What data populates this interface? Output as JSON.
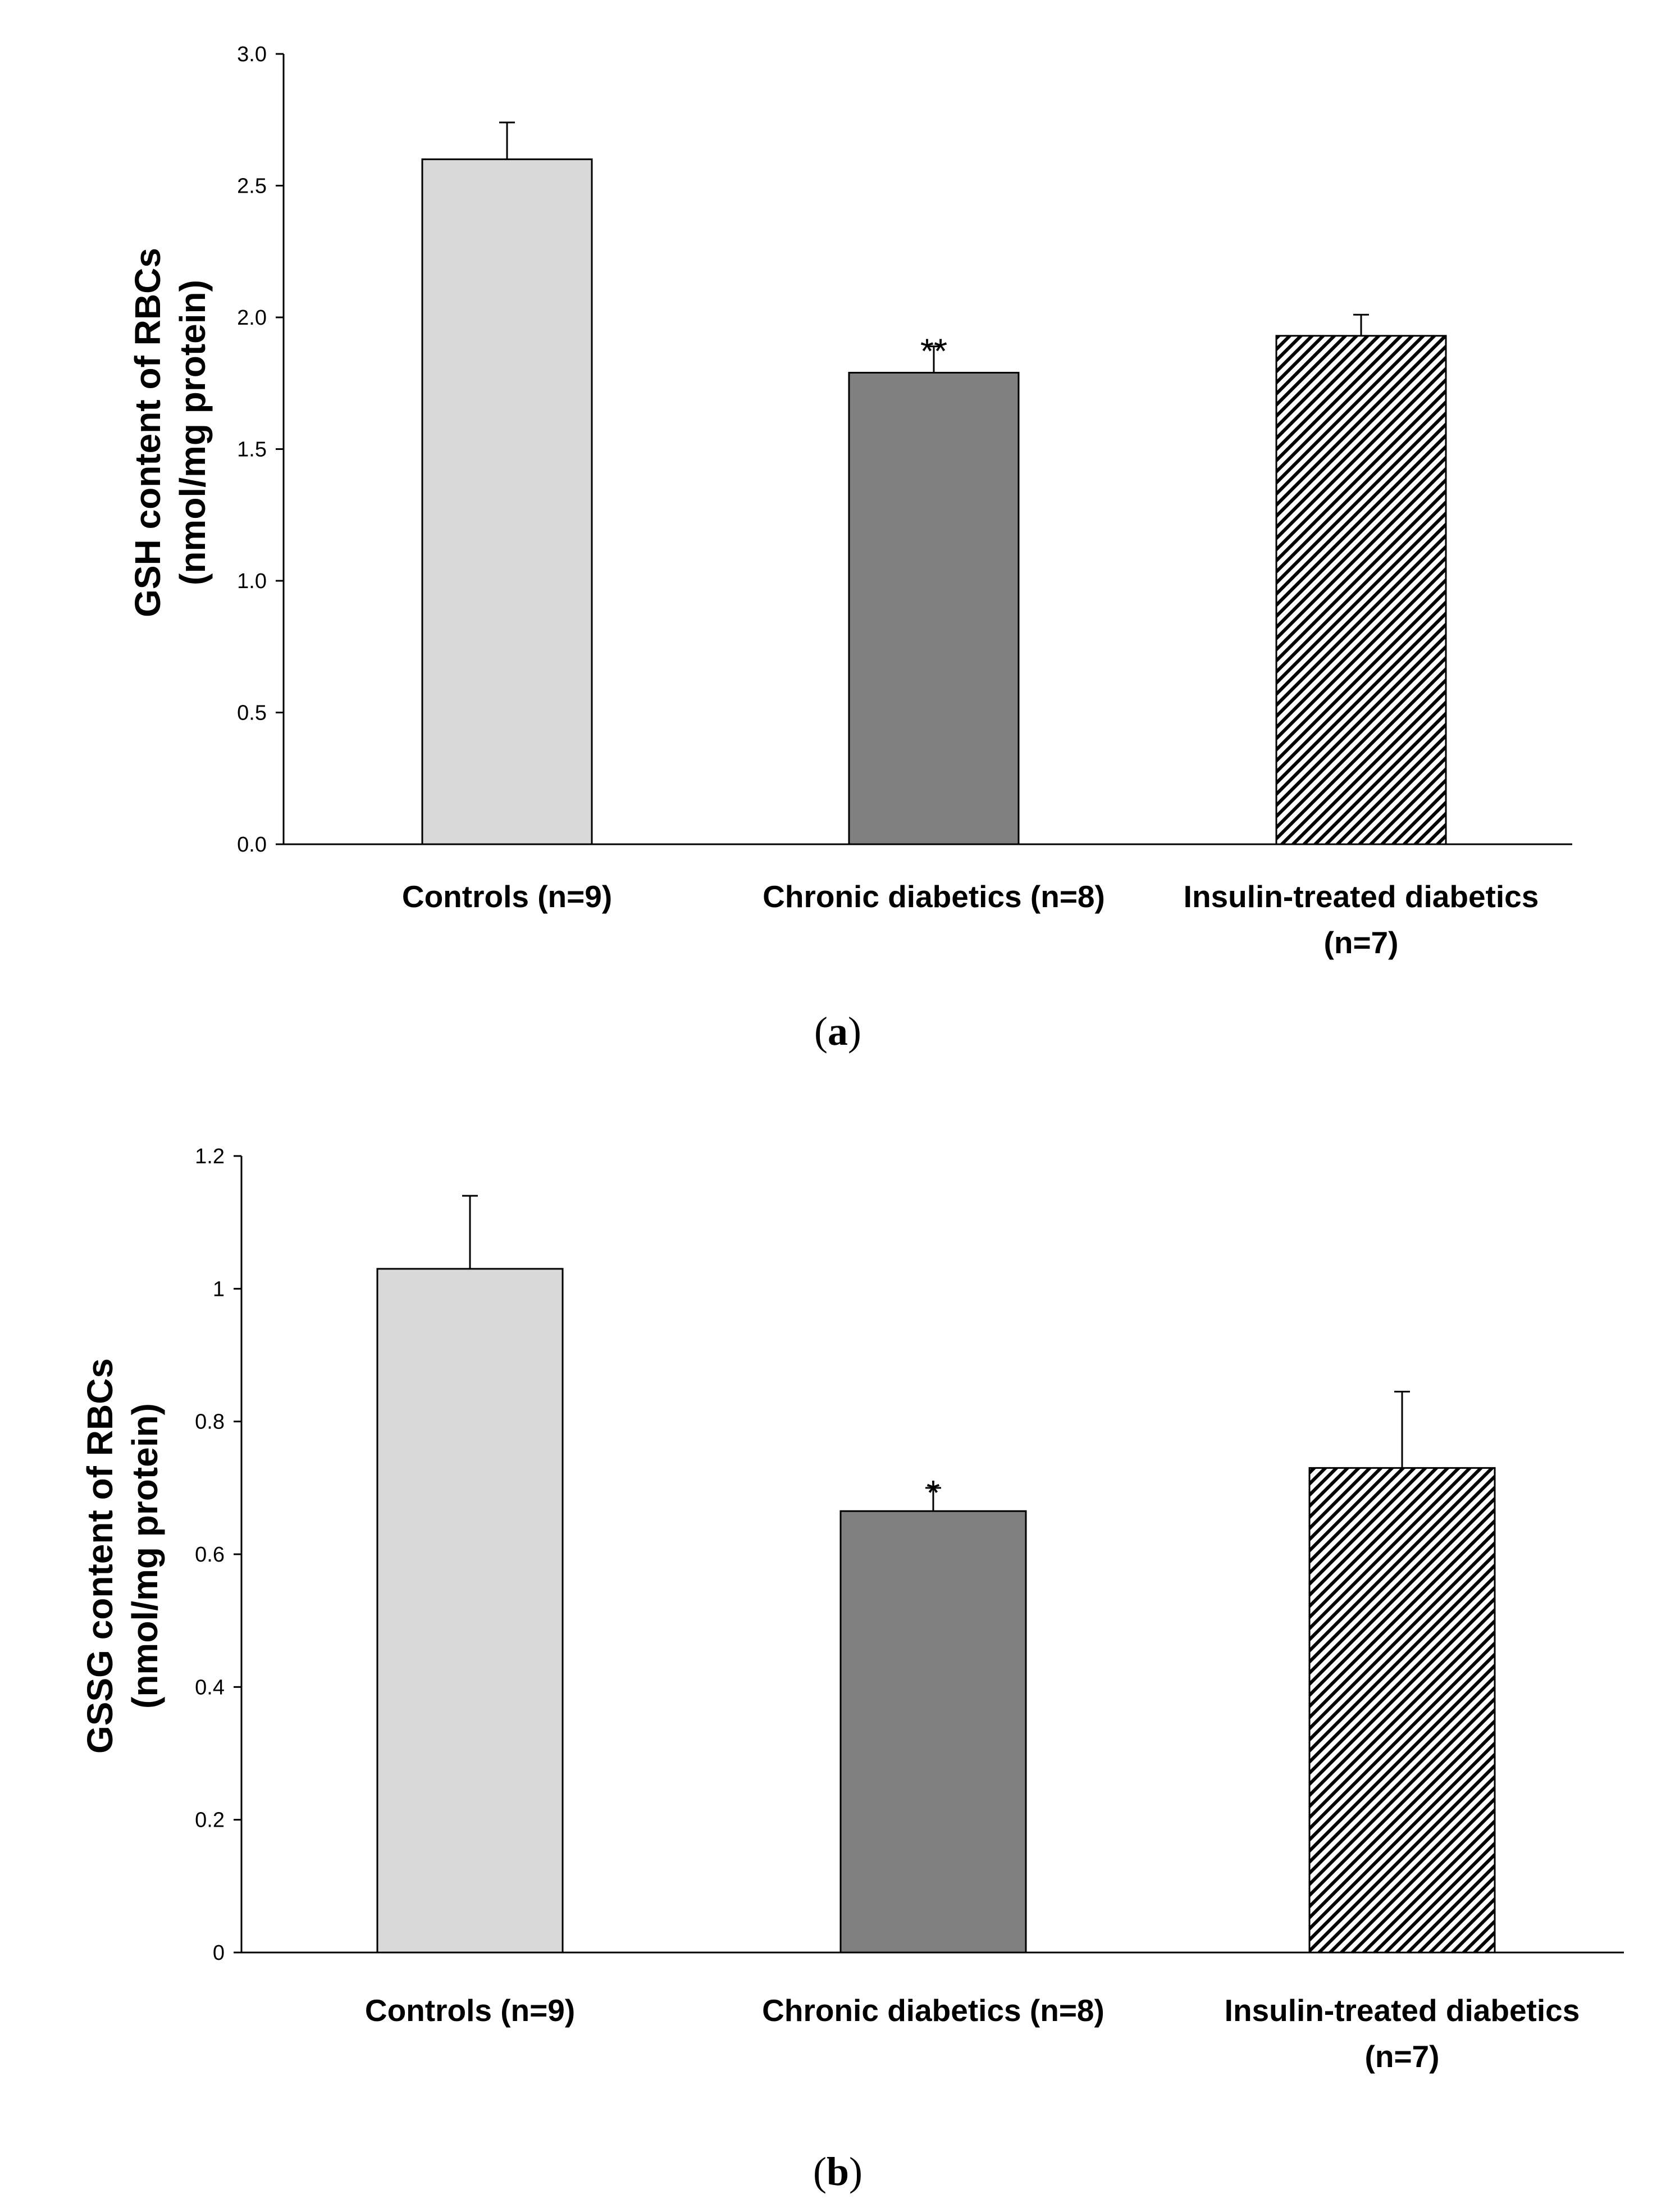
{
  "chart_data": [
    {
      "type": "bar",
      "panel_label": "(a)",
      "categories": [
        "Controls (n=9)",
        "Chronic diabetics (n=8)",
        "Insulin-treated diabetics (n=7)"
      ],
      "category_lines": [
        [
          "Controls (n=9)"
        ],
        [
          "Chronic diabetics (n=8)"
        ],
        [
          "Insulin-treated diabetics",
          "(n=7)"
        ]
      ],
      "values": [
        2.6,
        1.79,
        1.93
      ],
      "errors": [
        0.14,
        0.1,
        0.08
      ],
      "significance": [
        "",
        "**",
        ""
      ],
      "fills": [
        "light-gray",
        "dark-gray",
        "hatched"
      ],
      "ylabel": [
        "GSH content of RBCs",
        "(nmol/mg protein)"
      ],
      "xlabel": "",
      "ylim": [
        0,
        3.0
      ],
      "yticks": [
        "0.0",
        "0.5",
        "1.0",
        "1.5",
        "2.0",
        "2.5",
        "3.0"
      ],
      "grid": false
    },
    {
      "type": "bar",
      "panel_label": "(b)",
      "categories": [
        "Controls (n=9)",
        "Chronic diabetics (n=8)",
        "Insulin-treated diabetics (n=7)"
      ],
      "category_lines": [
        [
          "Controls (n=9)"
        ],
        [
          "Chronic diabetics (n=8)"
        ],
        [
          "Insulin-treated diabetics",
          "(n=7)"
        ]
      ],
      "values": [
        1.03,
        0.665,
        0.73
      ],
      "errors": [
        0.11,
        0.035,
        0.115
      ],
      "significance": [
        "",
        "*",
        ""
      ],
      "fills": [
        "light-gray",
        "dark-gray",
        "hatched"
      ],
      "ylabel": [
        "GSSG content of RBCs",
        "(nmol/mg protein)"
      ],
      "xlabel": "",
      "ylim": [
        0,
        1.2
      ],
      "yticks": [
        "0",
        "0.2",
        "0.4",
        "0.6",
        "0.8",
        "1",
        "1.2"
      ],
      "grid": false
    }
  ],
  "colors": {
    "light_gray": "#d9d9d9",
    "dark_gray": "#808080",
    "hatch": "#000000",
    "axis": "#000000"
  }
}
